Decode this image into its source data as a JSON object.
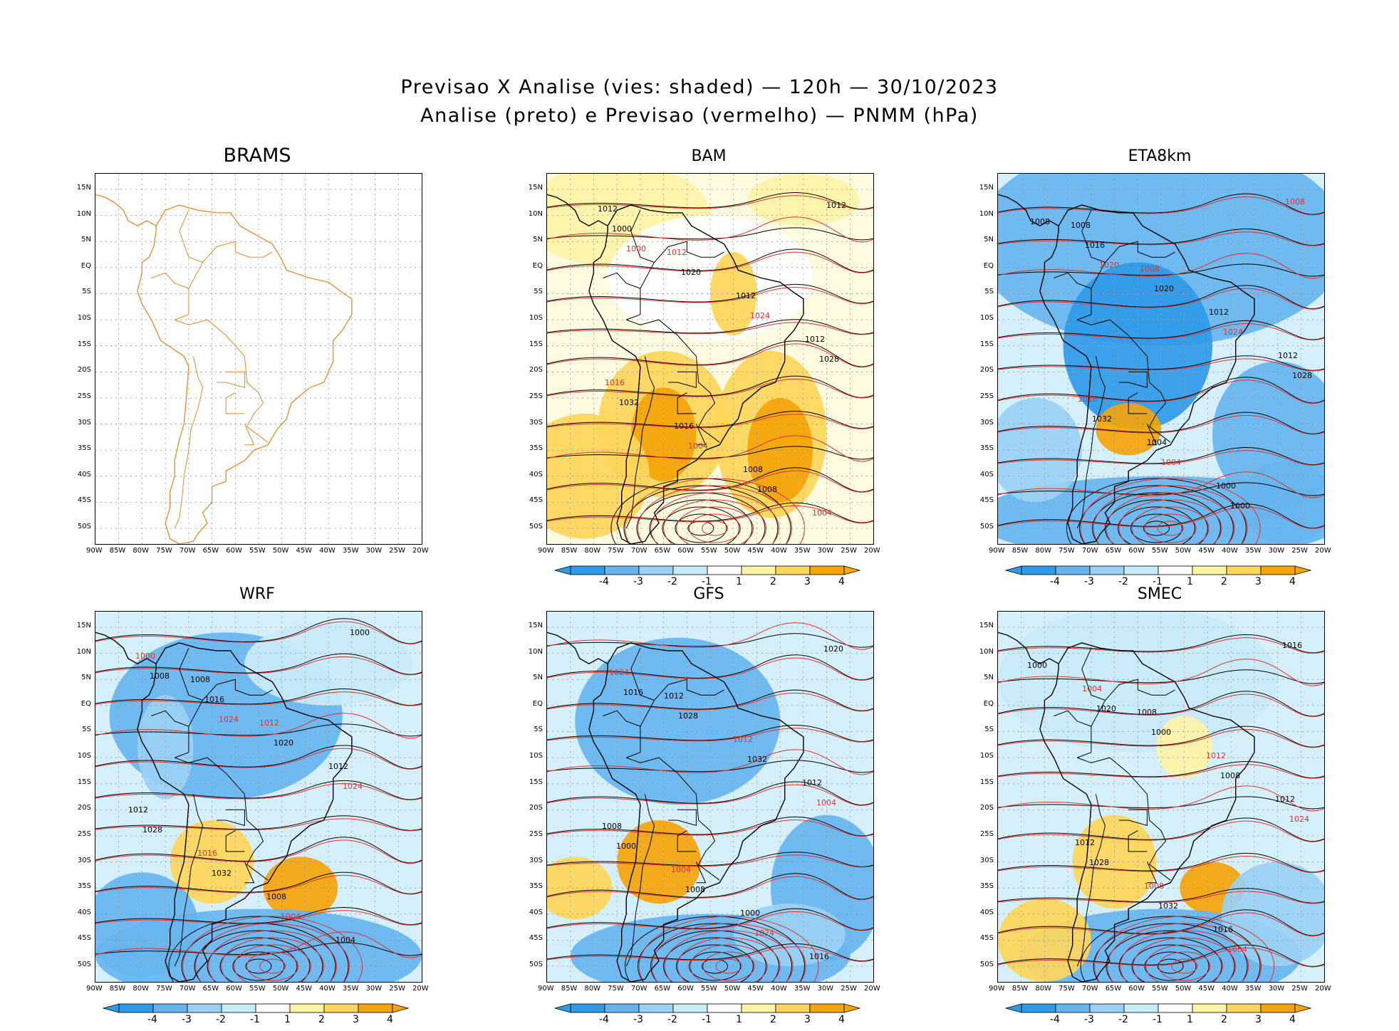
{
  "title": {
    "line1": "Previsao X Analise (vies: shaded) — 120h — 30/10/2023",
    "line2": "Analise (preto) e Previsao (vermelho) — PNMM (hPa)"
  },
  "lat_labels": [
    "15N",
    "10N",
    "5N",
    "EQ",
    "5S",
    "10S",
    "15S",
    "20S",
    "25S",
    "30S",
    "35S",
    "40S",
    "45S",
    "50S"
  ],
  "lon_labels": [
    "90W",
    "85W",
    "80W",
    "75W",
    "70W",
    "65W",
    "60W",
    "55W",
    "50W",
    "45W",
    "40W",
    "35W",
    "30W",
    "25W",
    "20W"
  ],
  "colorbar_labels": [
    "-4",
    "-3",
    "-2",
    "-1",
    "1",
    "2",
    "3",
    "4"
  ],
  "colorbar_colors": [
    "#2f9ae8",
    "#66b5f0",
    "#9bd1f5",
    "#c9ecfa",
    "#ffffff",
    "#fff3a6",
    "#ffd65a",
    "#f5a40a"
  ],
  "colors": {
    "coast": "#000000",
    "analysis_isobars": "#000000",
    "forecast_isobars": "#e0302f",
    "brams_outline": "#e8892b",
    "gridline": "#999999"
  },
  "panels": [
    {
      "name": "BRAMS",
      "has_colorbar": false,
      "labels": []
    },
    {
      "name": "BAM",
      "has_colorbar": true,
      "labels": [
        "1012",
        "1012",
        "1012",
        "1012",
        "1016",
        "1016",
        "1008",
        "1004",
        "1000",
        "1020",
        "1024",
        "1028",
        "1032",
        "1004",
        "1008",
        "1012",
        "1000"
      ]
    },
    {
      "name": "ETA8km",
      "has_colorbar": true,
      "labels": [
        "1008",
        "1008",
        "1012",
        "1012",
        "1016",
        "1004",
        "1000",
        "1008",
        "1016",
        "1020",
        "1024",
        "1028",
        "1032",
        "1004",
        "1000",
        "1008",
        "1020"
      ]
    },
    {
      "name": "WRF",
      "has_colorbar": true,
      "labels": [
        "1008",
        "1012",
        "1012",
        "1012",
        "1016",
        "1008",
        "1004",
        "1000",
        "1016",
        "1020",
        "1024",
        "1028",
        "1032",
        "1004",
        "1000",
        "1008",
        "1024"
      ]
    },
    {
      "name": "GFS",
      "has_colorbar": true,
      "labels": [
        "1012",
        "1012",
        "1012",
        "1008",
        "1004",
        "1000",
        "1016",
        "1024",
        "1028",
        "1032",
        "1004",
        "1000",
        "1008",
        "1024",
        "1020",
        "1016"
      ]
    },
    {
      "name": "SMEC",
      "has_colorbar": true,
      "labels": [
        "1008",
        "1012",
        "1012",
        "1012",
        "1008",
        "1016",
        "1016",
        "1004",
        "1000",
        "1008",
        "1024",
        "1028",
        "1032",
        "1004",
        "1000",
        "1020"
      ]
    }
  ]
}
